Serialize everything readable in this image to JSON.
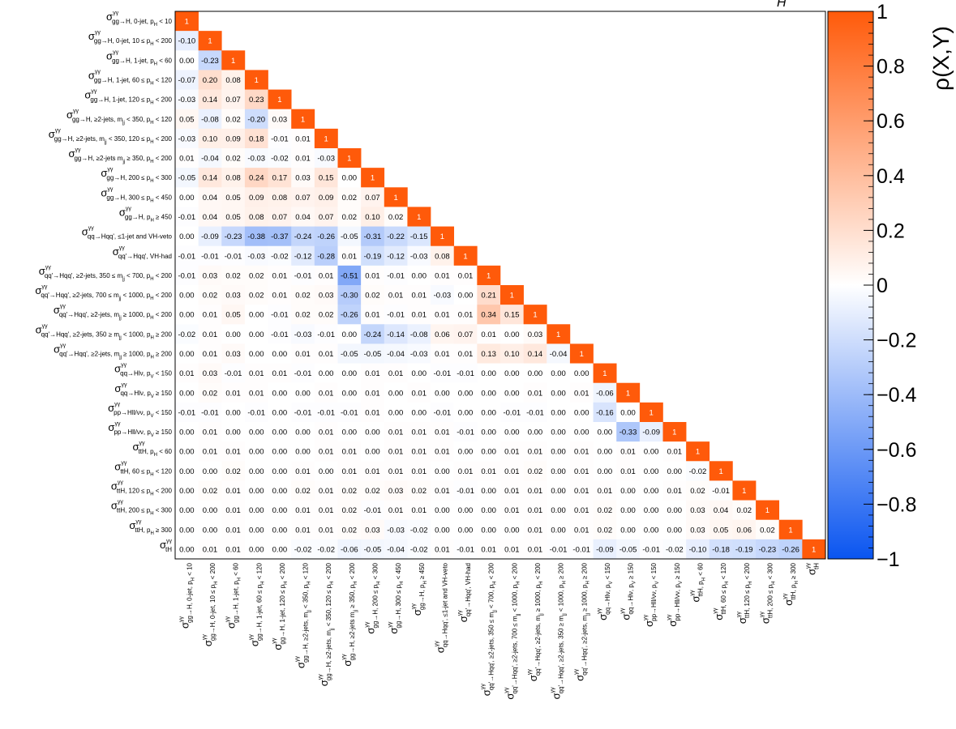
{
  "chart_data": {
    "type": "heatmap",
    "title": "H",
    "colorbar": {
      "label": "ρ(X,Y)",
      "range": [
        -1,
        1
      ],
      "ticks": [
        "1",
        "0.8",
        "0.6",
        "0.4",
        "0.2",
        "0",
        "−0.2",
        "−0.4",
        "−0.6",
        "−0.8",
        "−1"
      ],
      "colors": {
        "negative": "#0a55f0",
        "zero": "#ffffff",
        "positive": "#ff5a0a"
      }
    },
    "labels": [
      [
        "gg→H, 0-jet, p",
        "H",
        " < 10"
      ],
      [
        "gg→H, 0-jet, 10 ≤ p",
        "H",
        " < 200"
      ],
      [
        "gg→H, 1-jet, p",
        "H",
        " < 60"
      ],
      [
        "gg→H, 1-jet, 60 ≤ p",
        "H",
        " < 120"
      ],
      [
        "gg→H, 1-jet, 120 ≤ p",
        "H",
        " < 200"
      ],
      [
        "gg→H, ≥2-jets, m",
        "jj",
        " < 350, p",
        "H",
        " < 120"
      ],
      [
        "gg→H, ≥2-jets, m",
        "jj",
        " < 350, 120 ≤ p",
        "H",
        " < 200"
      ],
      [
        "gg→H, ≥2-jets m",
        "jj",
        " ≥ 350, p",
        "H",
        " < 200"
      ],
      [
        "gg→H, 200 ≤ p",
        "H",
        " < 300"
      ],
      [
        "gg→H, 300 ≤ p",
        "H",
        " < 450"
      ],
      [
        "gg→H, p",
        "H",
        " ≥ 450"
      ],
      [
        "qq→Hqq', ≤1-jet and VH-veto"
      ],
      [
        "qq'→Hqq', VH-had"
      ],
      [
        "qq'→Hqq', ≥2-jets, 350 ≤ m",
        "jj",
        " < 700, p",
        "H",
        " < 200"
      ],
      [
        "qq'→Hqq', ≥2-jets, 700 ≤ m",
        "jj",
        " < 1000, p",
        "H",
        " < 200"
      ],
      [
        "qq'→Hqq', ≥2-jets, m",
        "jj",
        " ≥ 1000, p",
        "H",
        " < 200"
      ],
      [
        "qq'→Hqq', ≥2-jets, 350 ≥ m",
        "jj",
        " < 1000, p",
        "H",
        " ≥ 200"
      ],
      [
        "qq'→Hqq', ≥2-jets, m",
        "jj",
        " ≥ 1000, p",
        "H",
        " ≥ 200"
      ],
      [
        "qq→Hlν, p",
        "V",
        " < 150"
      ],
      [
        "qq→Hlν, p",
        "V",
        " ≥ 150"
      ],
      [
        "pp→Hll/νν, p",
        "V",
        " < 150"
      ],
      [
        "pp→Hll/νν, p",
        "V",
        " ≥ 150"
      ],
      [
        "ttH, p",
        "H",
        " < 60"
      ],
      [
        "ttH, 60 ≤ p",
        "H",
        " < 120"
      ],
      [
        "ttH, 120 ≤ p",
        "H",
        " < 200"
      ],
      [
        "ttH, 200 ≤ p",
        "H",
        " < 300"
      ],
      [
        "ttH, p",
        "H",
        " ≥ 300"
      ],
      [
        "tH"
      ]
    ],
    "values": [
      [
        1
      ],
      [
        -0.1,
        1
      ],
      [
        0.0,
        -0.23,
        1
      ],
      [
        -0.07,
        0.2,
        0.08,
        1
      ],
      [
        -0.03,
        0.14,
        0.07,
        0.23,
        1
      ],
      [
        0.05,
        -0.08,
        0.02,
        -0.2,
        0.03,
        1
      ],
      [
        -0.03,
        0.1,
        0.09,
        0.18,
        -0.01,
        0.01,
        1
      ],
      [
        0.01,
        -0.04,
        0.02,
        -0.03,
        -0.02,
        0.01,
        -0.03,
        1
      ],
      [
        -0.05,
        0.14,
        0.08,
        0.24,
        0.17,
        0.03,
        0.15,
        0.0,
        1
      ],
      [
        0.0,
        0.04,
        0.05,
        0.09,
        0.08,
        0.07,
        0.09,
        0.02,
        0.07,
        1
      ],
      [
        -0.01,
        0.04,
        0.05,
        0.08,
        0.07,
        0.04,
        0.07,
        0.02,
        0.1,
        0.02,
        1
      ],
      [
        0.0,
        -0.09,
        -0.23,
        -0.38,
        -0.37,
        -0.24,
        -0.26,
        -0.05,
        -0.31,
        -0.22,
        -0.15,
        1
      ],
      [
        -0.01,
        -0.01,
        -0.01,
        -0.03,
        -0.02,
        -0.12,
        -0.28,
        0.01,
        -0.19,
        -0.12,
        -0.03,
        0.08,
        1
      ],
      [
        -0.01,
        0.03,
        0.02,
        0.02,
        0.01,
        -0.01,
        0.01,
        -0.51,
        0.01,
        -0.01,
        0.0,
        0.01,
        0.01,
        1
      ],
      [
        0.0,
        0.02,
        0.03,
        0.02,
        0.01,
        0.02,
        0.03,
        -0.3,
        0.02,
        0.01,
        0.01,
        -0.03,
        0.0,
        0.21,
        1
      ],
      [
        0.0,
        0.01,
        0.05,
        0.0,
        -0.01,
        0.02,
        0.02,
        -0.26,
        0.01,
        -0.01,
        0.01,
        0.01,
        0.01,
        0.34,
        0.15,
        1
      ],
      [
        -0.02,
        0.01,
        0.0,
        0.0,
        -0.01,
        -0.03,
        -0.01,
        0.0,
        -0.24,
        -0.14,
        -0.08,
        0.06,
        0.07,
        0.01,
        0.0,
        0.03,
        1
      ],
      [
        0.0,
        0.01,
        0.03,
        0.0,
        0.0,
        0.01,
        0.01,
        -0.05,
        -0.05,
        -0.04,
        -0.03,
        0.01,
        0.01,
        0.13,
        0.1,
        0.14,
        -0.04,
        1
      ],
      [
        0.01,
        0.03,
        -0.01,
        0.01,
        0.01,
        -0.01,
        0.0,
        0.0,
        0.01,
        0.01,
        0.0,
        -0.01,
        -0.01,
        0.0,
        0.0,
        0.0,
        0.0,
        0.0,
        1
      ],
      [
        0.0,
        0.02,
        0.01,
        0.01,
        0.0,
        0.0,
        0.01,
        0.0,
        0.01,
        0.0,
        0.01,
        0.0,
        0.0,
        0.0,
        0.0,
        0.01,
        0.0,
        0.01,
        -0.06,
        1
      ],
      [
        -0.01,
        -0.01,
        0.0,
        -0.01,
        0.0,
        -0.01,
        -0.01,
        -0.01,
        0.01,
        0.0,
        0.0,
        -0.01,
        0.0,
        0.0,
        -0.01,
        -0.01,
        0.0,
        0.0,
        -0.16,
        0.0,
        1
      ],
      [
        0.0,
        0.01,
        0.0,
        0.0,
        0.0,
        0.0,
        0.01,
        0.0,
        0.0,
        0.01,
        0.01,
        0.01,
        -0.01,
        0.0,
        0.0,
        0.0,
        0.0,
        0.0,
        0.0,
        -0.33,
        -0.09,
        1
      ],
      [
        0.0,
        0.01,
        0.01,
        0.0,
        0.0,
        0.0,
        0.01,
        0.01,
        0.0,
        0.01,
        0.01,
        0.01,
        0.0,
        0.0,
        0.01,
        0.01,
        0.0,
        0.01,
        0.0,
        0.01,
        0.0,
        0.01,
        1
      ],
      [
        0.0,
        0.0,
        0.02,
        0.0,
        0.0,
        0.01,
        0.0,
        0.01,
        0.01,
        0.01,
        0.01,
        0.0,
        0.01,
        0.01,
        0.01,
        0.02,
        0.0,
        0.01,
        0.0,
        0.01,
        0.0,
        0.0,
        -0.02,
        1
      ],
      [
        0.0,
        0.02,
        0.01,
        0.0,
        0.0,
        0.02,
        0.01,
        0.02,
        0.02,
        0.03,
        0.02,
        0.01,
        -0.01,
        0.0,
        0.01,
        0.01,
        0.0,
        0.01,
        0.01,
        0.0,
        0.0,
        0.01,
        0.02,
        -0.01,
        1
      ],
      [
        0.0,
        0.0,
        0.01,
        0.0,
        0.0,
        0.01,
        0.01,
        0.02,
        -0.01,
        0.01,
        0.01,
        0.0,
        0.0,
        0.0,
        0.01,
        0.01,
        0.0,
        0.01,
        0.02,
        0.0,
        0.0,
        0.0,
        0.03,
        0.04,
        0.02,
        1
      ],
      [
        0.0,
        0.0,
        0.01,
        0.0,
        0.0,
        0.01,
        0.01,
        0.02,
        0.03,
        -0.03,
        -0.02,
        0.0,
        0.0,
        0.0,
        0.0,
        0.01,
        0.0,
        0.01,
        0.02,
        0.0,
        0.0,
        0.0,
        0.03,
        0.05,
        0.06,
        0.02,
        1
      ],
      [
        0.0,
        0.01,
        0.01,
        0.0,
        0.0,
        -0.02,
        -0.02,
        -0.06,
        -0.05,
        -0.04,
        -0.02,
        0.01,
        -0.01,
        0.01,
        0.01,
        0.01,
        -0.01,
        -0.01,
        -0.09,
        -0.05,
        -0.01,
        -0.02,
        -0.1,
        -0.18,
        -0.19,
        -0.23,
        -0.26,
        1
      ]
    ]
  }
}
